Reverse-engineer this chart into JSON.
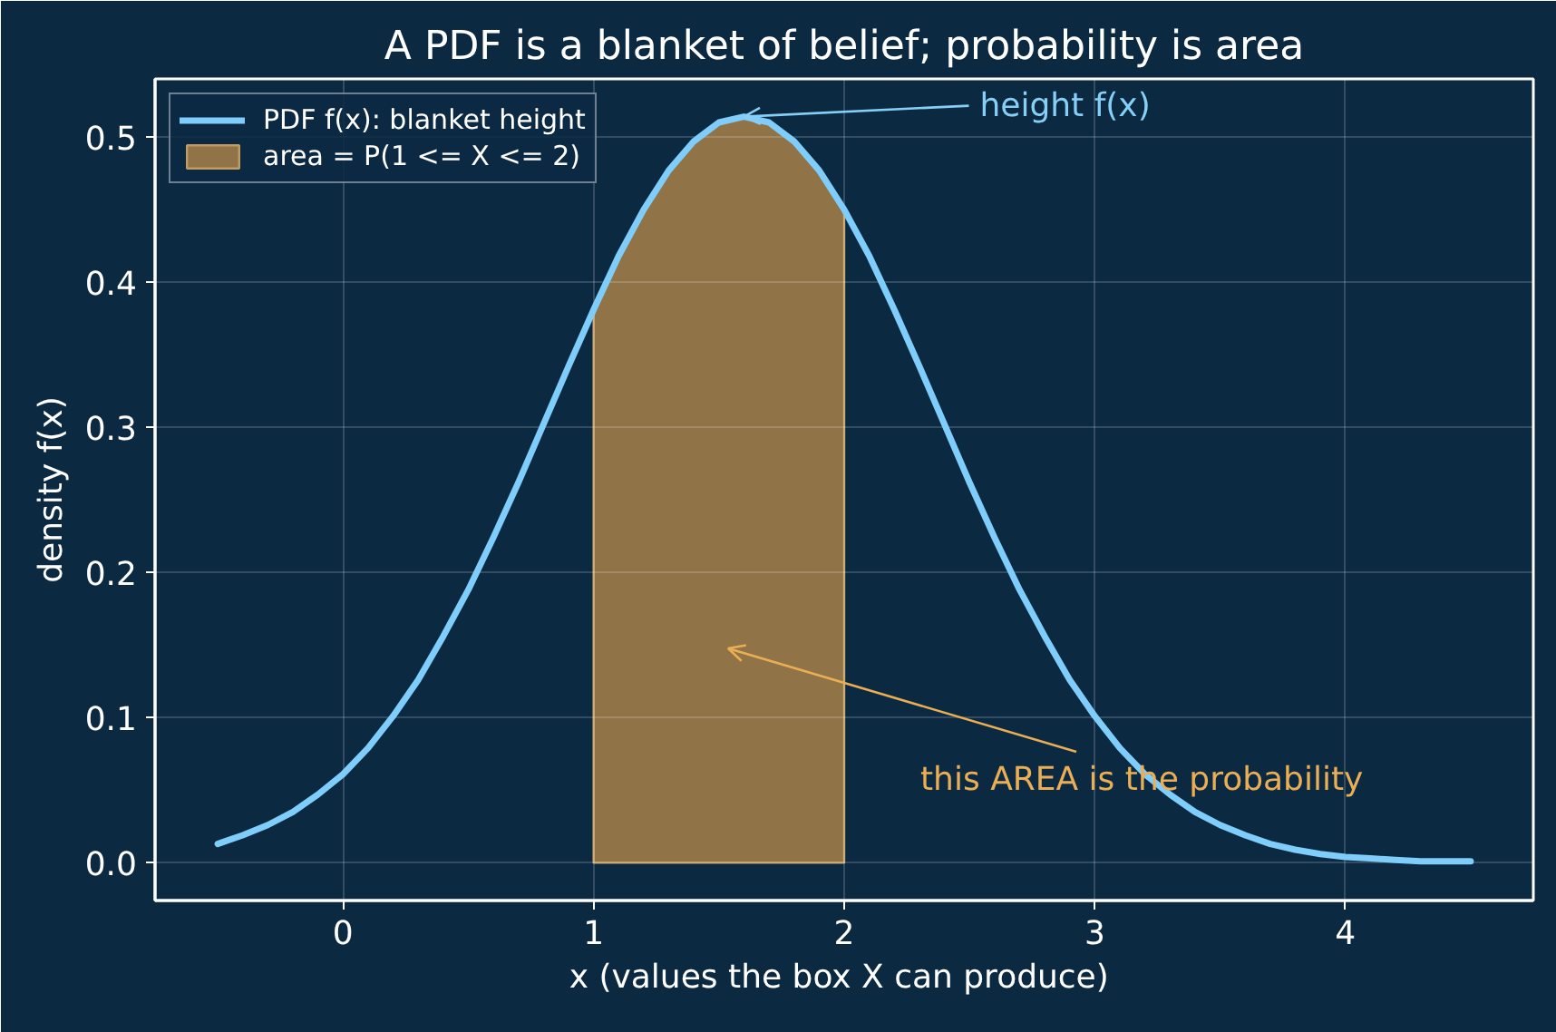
{
  "chart_data": {
    "type": "line",
    "title": "A PDF is a blanket of belief; probability is area",
    "xlabel": "x  (values the box X can produce)",
    "ylabel": "density f(x)",
    "xlim": [
      -0.75,
      4.75
    ],
    "ylim": [
      -0.026,
      0.54
    ],
    "xticks": [
      0,
      1,
      2,
      3,
      4
    ],
    "yticks": [
      {
        "value": 0,
        "label": "0.0"
      },
      0.1,
      0.2,
      0.3,
      0.4,
      0.5
    ],
    "grid": true,
    "legend": "top left",
    "series": [
      {
        "type": "area",
        "name": "area = P(1 <= X <= 2)",
        "color": "#907447",
        "x": [
          1.0,
          1.1,
          1.2,
          1.3,
          1.4,
          1.5,
          1.6,
          1.7,
          1.8,
          1.9,
          2.0
        ],
        "values": [
          0.381,
          0.418,
          0.45,
          0.477,
          0.497,
          0.51,
          0.514,
          0.51,
          0.497,
          0.477,
          0.45
        ]
      },
      {
        "name": "PDF f(x): blanket height",
        "color": "#7fcdfb",
        "x": [
          -0.5,
          -0.4,
          -0.3,
          -0.2,
          -0.1,
          0.0,
          0.1,
          0.2,
          0.3,
          0.4,
          0.5,
          0.6,
          0.7,
          0.8,
          0.9,
          1.0,
          1.1,
          1.2,
          1.3,
          1.4,
          1.5,
          1.6,
          1.7,
          1.8,
          1.9,
          2.0,
          2.1,
          2.2,
          2.3,
          2.4,
          2.5,
          2.6,
          2.7,
          2.8,
          2.9,
          3.0,
          3.1,
          3.2,
          3.3,
          3.4,
          3.5,
          3.6,
          3.7,
          3.8,
          3.9,
          4.0,
          4.1,
          4.2,
          4.3,
          4.4,
          4.5
        ],
        "values": [
          0.013,
          0.019,
          0.026,
          0.035,
          0.047,
          0.061,
          0.079,
          0.101,
          0.126,
          0.156,
          0.188,
          0.224,
          0.262,
          0.302,
          0.342,
          0.381,
          0.418,
          0.45,
          0.477,
          0.497,
          0.51,
          0.514,
          0.51,
          0.497,
          0.477,
          0.45,
          0.418,
          0.381,
          0.342,
          0.302,
          0.262,
          0.224,
          0.188,
          0.156,
          0.126,
          0.101,
          0.079,
          0.061,
          0.047,
          0.035,
          0.026,
          0.019,
          0.013,
          0.009,
          0.006,
          0.004,
          0.003,
          0.002,
          0.001,
          0.001,
          0.001
        ]
      }
    ],
    "annotations": [
      {
        "text": "height f(x)",
        "x": 1.6,
        "y": 0.514
      },
      "this AREA is the probability"
    ]
  }
}
